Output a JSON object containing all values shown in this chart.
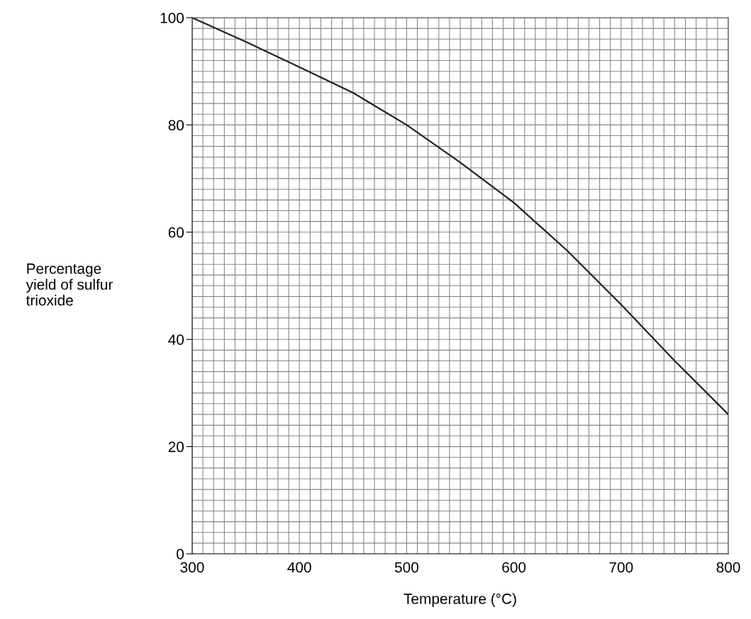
{
  "chart_data": {
    "type": "line",
    "xlabel": "Temperature (°C)",
    "ylabel": "Percentage\nyield of sulfur\ntrioxide",
    "x": [
      300,
      350,
      400,
      450,
      500,
      550,
      600,
      650,
      700,
      750,
      800
    ],
    "series": [
      {
        "color": "#222222",
        "values": [
          100,
          95.5,
          90.8,
          86,
          80,
          73,
          65.5,
          56.5,
          46.5,
          36,
          26
        ]
      }
    ],
    "xlim": [
      300,
      800
    ],
    "ylim": [
      0,
      100
    ],
    "xticks": [
      300,
      400,
      500,
      600,
      700,
      800
    ],
    "yticks": [
      0,
      20,
      40,
      60,
      80,
      100
    ],
    "grid": true,
    "marker": "none",
    "line_style": "solid"
  }
}
